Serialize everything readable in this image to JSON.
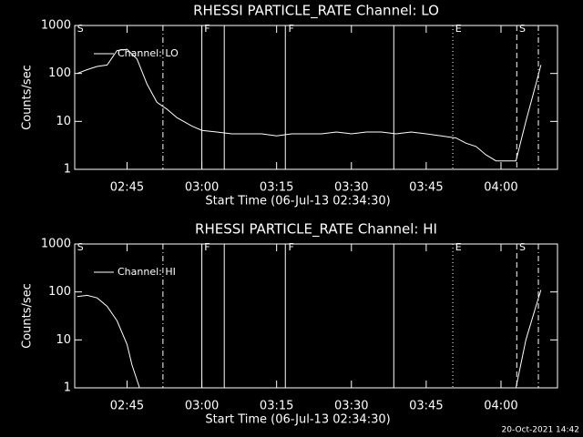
{
  "chart_data": [
    {
      "type": "line",
      "title": "RHESSI PARTICLE_RATE Channel: LO",
      "xlabel": "Start Time (06-Jul-13 02:34:30)",
      "ylabel": "Counts/sec",
      "x": [
        "02:35",
        "02:37",
        "02:39",
        "02:41",
        "02:43",
        "02:45",
        "02:47",
        "02:49",
        "02:51",
        "02:53",
        "02:55",
        "02:58",
        "03:00",
        "03:03",
        "03:06",
        "03:09",
        "03:12",
        "03:15",
        "03:18",
        "03:21",
        "03:24",
        "03:27",
        "03:30",
        "03:33",
        "03:36",
        "03:39",
        "03:42",
        "03:45",
        "03:48",
        "03:51",
        "03:53",
        "03:55",
        "03:57",
        "03:59",
        "04:01",
        "04:03",
        "04:05",
        "04:07",
        "04:08"
      ],
      "series": [
        {
          "name": "Channel: LO",
          "color": "#ffffff",
          "values": [
            100,
            120,
            140,
            150,
            300,
            320,
            200,
            60,
            25,
            18,
            12,
            8,
            6.5,
            6,
            5.5,
            5.5,
            5.5,
            5,
            5.5,
            5.5,
            5.5,
            6,
            5.5,
            6,
            6,
            5.5,
            6,
            5.5,
            5,
            4.5,
            3.5,
            3,
            2,
            1.5,
            1.5,
            1.5,
            10,
            60,
            150
          ]
        }
      ],
      "xlim": [
        "02:34:30",
        "04:11:20"
      ],
      "xticks": [
        "02:45",
        "03:00",
        "03:15",
        "03:30",
        "03:45",
        "04:00"
      ],
      "ylim": [
        1,
        1000
      ],
      "yticks": [
        1,
        10,
        100,
        1000
      ],
      "log_y": true,
      "markers": [
        {
          "time": "02:52:12",
          "style": "dash-dot"
        },
        {
          "time": "03:00",
          "style": "solid"
        },
        {
          "time": "03:04:30",
          "style": "solid"
        },
        {
          "time": "03:16:45",
          "style": "solid"
        },
        {
          "time": "03:38:30",
          "style": "solid"
        },
        {
          "time": "03:50:20",
          "style": "dotted"
        },
        {
          "time": "04:03:10",
          "style": "dashed"
        },
        {
          "time": "04:07:30",
          "style": "dash-dot"
        }
      ],
      "flags": [
        {
          "time": "02:35",
          "label": "S"
        },
        {
          "time": "03:00:30",
          "label": "F"
        },
        {
          "time": "03:17:20",
          "label": "F"
        },
        {
          "time": "03:50:50",
          "label": "E"
        },
        {
          "time": "04:03:40",
          "label": "S"
        }
      ]
    },
    {
      "type": "line",
      "title": "RHESSI PARTICLE_RATE Channel: HI",
      "xlabel": "Start Time (06-Jul-13 02:34:30)",
      "ylabel": "Counts/sec",
      "x": [
        "02:35",
        "02:37",
        "02:39",
        "02:41",
        "02:43",
        "02:45",
        "02:46",
        "02:47:30",
        "03:30",
        "04:03",
        "04:05",
        "04:07",
        "04:08"
      ],
      "series": [
        {
          "name": "Channel: HI",
          "color": "#ffffff",
          "values": [
            80,
            85,
            75,
            50,
            25,
            8,
            3,
            1,
            null,
            1,
            10,
            50,
            110
          ]
        }
      ],
      "xlim": [
        "02:34:30",
        "04:11:20"
      ],
      "xticks": [
        "02:45",
        "03:00",
        "03:15",
        "03:30",
        "03:45",
        "04:00"
      ],
      "ylim": [
        1,
        1000
      ],
      "yticks": [
        1,
        10,
        100,
        1000
      ],
      "log_y": true,
      "markers": [
        {
          "time": "02:52:12",
          "style": "dash-dot"
        },
        {
          "time": "03:00",
          "style": "solid"
        },
        {
          "time": "03:04:30",
          "style": "solid"
        },
        {
          "time": "03:16:45",
          "style": "solid"
        },
        {
          "time": "03:38:30",
          "style": "solid"
        },
        {
          "time": "03:50:20",
          "style": "dotted"
        },
        {
          "time": "04:03:10",
          "style": "dashed"
        },
        {
          "time": "04:07:30",
          "style": "dash-dot"
        }
      ],
      "flags": [
        {
          "time": "02:35",
          "label": "S"
        },
        {
          "time": "03:00:30",
          "label": "F"
        },
        {
          "time": "03:17:20",
          "label": "F"
        },
        {
          "time": "03:50:50",
          "label": "E"
        },
        {
          "time": "04:03:40",
          "label": "S"
        }
      ]
    }
  ],
  "footer": "20-Oct-2021 14:42"
}
